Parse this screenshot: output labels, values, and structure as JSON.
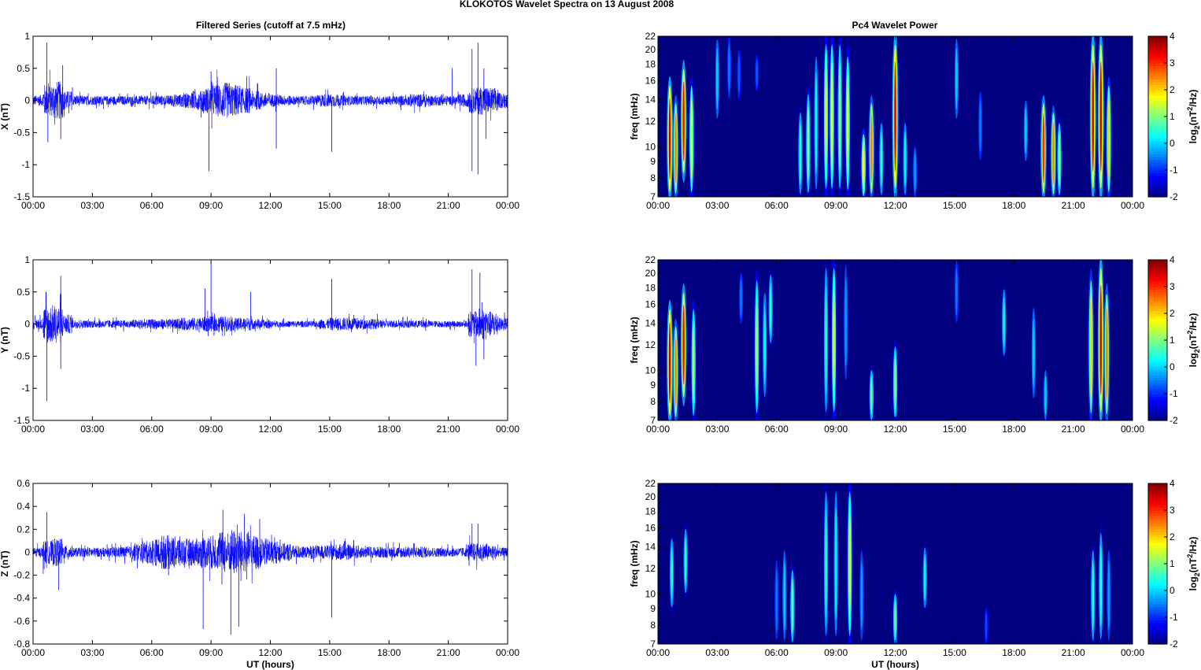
{
  "chart_data": {
    "title": "KLOKOTOS Wavelet Spectra on 13 August    2008",
    "left_title": "Filtered Series (cutoff at 7.5 mHz)",
    "right_title": "Pc4 Wavelet Power",
    "xlabel": "UT (hours)",
    "x_ticks": [
      "00:00",
      "03:00",
      "06:00",
      "09:00",
      "12:00",
      "15:00",
      "18:00",
      "21:00",
      "00:00"
    ],
    "x_range_hours": [
      0,
      24
    ],
    "series": [
      {
        "type": "line",
        "name": "X",
        "ylabel": "X (nT)",
        "color": "#0000ff",
        "ylim": [
          -1.5,
          1
        ],
        "y_ticks": [
          -1.5,
          -1,
          -0.5,
          0,
          0.5,
          1
        ],
        "envelope_halfhourly": [
          0.08,
          0.25,
          0.3,
          0.15,
          0.08,
          0.07,
          0.07,
          0.07,
          0.07,
          0.07,
          0.07,
          0.07,
          0.08,
          0.08,
          0.1,
          0.12,
          0.15,
          0.2,
          0.25,
          0.28,
          0.25,
          0.2,
          0.15,
          0.12,
          0.1,
          0.08,
          0.07,
          0.07,
          0.08,
          0.1,
          0.1,
          0.08,
          0.07,
          0.07,
          0.07,
          0.07,
          0.07,
          0.08,
          0.1,
          0.1,
          0.08,
          0.08,
          0.07,
          0.1,
          0.2,
          0.22,
          0.2,
          0.12
        ],
        "spikes": [
          [
            0.7,
            0.9
          ],
          [
            0.75,
            -0.65
          ],
          [
            1.4,
            -0.6
          ],
          [
            1.5,
            0.55
          ],
          [
            8.9,
            -1.1
          ],
          [
            9.0,
            0.45
          ],
          [
            12.3,
            0.5
          ],
          [
            12.3,
            -0.75
          ],
          [
            15.1,
            -0.8
          ],
          [
            21.2,
            0.5
          ],
          [
            22.2,
            0.8
          ],
          [
            22.2,
            -1.1
          ],
          [
            22.5,
            0.9
          ],
          [
            22.5,
            -1.15
          ],
          [
            22.8,
            0.5
          ],
          [
            22.9,
            -0.6
          ]
        ]
      },
      {
        "type": "line",
        "name": "Y",
        "ylabel": "Y (nT)",
        "color": "#0000ff",
        "ylim": [
          -1.5,
          1
        ],
        "y_ticks": [
          -1.5,
          -1,
          -0.5,
          0,
          0.5,
          1
        ],
        "envelope_halfhourly": [
          0.08,
          0.3,
          0.3,
          0.15,
          0.07,
          0.06,
          0.06,
          0.06,
          0.06,
          0.06,
          0.07,
          0.07,
          0.08,
          0.08,
          0.08,
          0.1,
          0.1,
          0.12,
          0.12,
          0.12,
          0.1,
          0.1,
          0.08,
          0.07,
          0.05,
          0.05,
          0.05,
          0.05,
          0.05,
          0.08,
          0.1,
          0.1,
          0.1,
          0.08,
          0.08,
          0.06,
          0.06,
          0.06,
          0.06,
          0.06,
          0.05,
          0.05,
          0.05,
          0.05,
          0.2,
          0.25,
          0.2,
          0.1
        ],
        "spikes": [
          [
            0.7,
            -1.2
          ],
          [
            0.65,
            0.5
          ],
          [
            1.4,
            0.75
          ],
          [
            1.4,
            -0.7
          ],
          [
            8.7,
            0.55
          ],
          [
            9.0,
            0.97
          ],
          [
            11.0,
            0.5
          ],
          [
            15.1,
            0.7
          ],
          [
            22.2,
            0.85
          ],
          [
            22.4,
            -0.65
          ],
          [
            22.6,
            0.8
          ],
          [
            22.8,
            -0.55
          ]
        ]
      },
      {
        "type": "line",
        "name": "Z",
        "ylabel": "Z (nT)",
        "color": "#0000ff",
        "ylim": [
          -0.8,
          0.6
        ],
        "y_ticks": [
          -0.8,
          -0.6,
          -0.4,
          -0.2,
          0,
          0.2,
          0.4,
          0.6
        ],
        "envelope_halfhourly": [
          0.04,
          0.1,
          0.12,
          0.06,
          0.04,
          0.04,
          0.04,
          0.04,
          0.05,
          0.05,
          0.08,
          0.1,
          0.12,
          0.15,
          0.14,
          0.12,
          0.12,
          0.14,
          0.15,
          0.18,
          0.2,
          0.18,
          0.15,
          0.12,
          0.1,
          0.08,
          0.06,
          0.05,
          0.06,
          0.06,
          0.07,
          0.07,
          0.06,
          0.05,
          0.05,
          0.05,
          0.05,
          0.05,
          0.05,
          0.05,
          0.04,
          0.04,
          0.04,
          0.04,
          0.08,
          0.08,
          0.06,
          0.04
        ],
        "spikes": [
          [
            0.7,
            0.35
          ],
          [
            1.3,
            -0.33
          ],
          [
            8.6,
            -0.67
          ],
          [
            9.6,
            0.37
          ],
          [
            10.0,
            -0.72
          ],
          [
            10.4,
            -0.65
          ],
          [
            15.1,
            -0.57
          ],
          [
            22.2,
            0.25
          ],
          [
            22.5,
            0.25
          ]
        ]
      }
    ],
    "spectra": [
      {
        "type": "heatmap",
        "ylabel": "freq (mHz)",
        "yscale": "log",
        "ylim": [
          7,
          22
        ],
        "y_ticks": [
          7,
          8,
          9,
          10,
          12,
          14,
          16,
          18,
          20,
          22
        ],
        "events_t_fmin_fmax_peak": [
          [
            0.6,
            7,
            16,
            3.5
          ],
          [
            0.9,
            7,
            14,
            2.5
          ],
          [
            1.3,
            8,
            18,
            3.2
          ],
          [
            1.7,
            7,
            16,
            1.5
          ],
          [
            3.0,
            12,
            22,
            0
          ],
          [
            3.6,
            14,
            22,
            -0.5
          ],
          [
            4.1,
            14,
            20,
            -0.7
          ],
          [
            5.0,
            15,
            19,
            -0.7
          ],
          [
            7.2,
            7,
            13,
            0.5
          ],
          [
            7.6,
            7,
            15,
            1
          ],
          [
            8.0,
            7,
            20,
            0.3
          ],
          [
            8.5,
            7,
            22,
            1.5
          ],
          [
            8.8,
            7,
            22,
            1.5
          ],
          [
            9.2,
            7,
            22,
            1
          ],
          [
            9.6,
            7,
            20,
            1.5
          ],
          [
            10.4,
            7,
            11,
            1.8
          ],
          [
            10.8,
            7,
            14,
            2.5
          ],
          [
            11.3,
            7,
            12,
            0.5
          ],
          [
            12.0,
            7,
            22,
            3.5
          ],
          [
            12.5,
            7,
            12,
            0.3
          ],
          [
            13.0,
            7,
            10,
            -0.3
          ],
          [
            15.1,
            12,
            22,
            0
          ],
          [
            16.3,
            9,
            15,
            -0.5
          ],
          [
            18.6,
            9,
            14,
            0
          ],
          [
            19.5,
            7,
            14,
            3
          ],
          [
            20.0,
            7,
            13,
            2.5
          ],
          [
            20.3,
            7,
            12,
            1
          ],
          [
            22.0,
            7,
            22,
            3.5
          ],
          [
            22.4,
            7,
            22,
            3.5
          ],
          [
            22.8,
            7,
            16,
            2
          ]
        ]
      },
      {
        "type": "heatmap",
        "ylabel": "freq (mHz)",
        "yscale": "log",
        "ylim": [
          7,
          22
        ],
        "y_ticks": [
          7,
          8,
          9,
          10,
          12,
          14,
          16,
          18,
          20,
          22
        ],
        "events_t_fmin_fmax_peak": [
          [
            0.6,
            7,
            16,
            3.5
          ],
          [
            0.9,
            7,
            14,
            2.5
          ],
          [
            1.3,
            8,
            18,
            3.2
          ],
          [
            1.8,
            7,
            16,
            1.2
          ],
          [
            4.2,
            14,
            20,
            -0.5
          ],
          [
            5.0,
            7,
            20,
            1.2
          ],
          [
            5.4,
            8,
            18,
            0.3
          ],
          [
            5.7,
            12,
            20,
            0.5
          ],
          [
            8.5,
            7,
            22,
            0.5
          ],
          [
            8.9,
            7,
            22,
            1.5
          ],
          [
            9.5,
            9,
            22,
            -0.3
          ],
          [
            10.8,
            7,
            10,
            0.8
          ],
          [
            12.0,
            7,
            12,
            1
          ],
          [
            15.1,
            14,
            22,
            -0.5
          ],
          [
            17.5,
            11,
            18,
            0.3
          ],
          [
            19.0,
            8,
            16,
            0
          ],
          [
            19.6,
            7,
            10,
            0
          ],
          [
            21.9,
            7,
            20,
            2
          ],
          [
            22.4,
            7,
            22,
            3.5
          ],
          [
            22.7,
            7,
            18,
            2.5
          ]
        ]
      },
      {
        "type": "heatmap",
        "ylabel": "freq (mHz)",
        "yscale": "log",
        "ylim": [
          7,
          22
        ],
        "y_ticks": [
          7,
          8,
          9,
          10,
          12,
          14,
          16,
          18,
          20,
          22
        ],
        "events_t_fmin_fmax_peak": [
          [
            0.7,
            9,
            15,
            0.5
          ],
          [
            1.4,
            10,
            16,
            0.5
          ],
          [
            6.0,
            7,
            13,
            -0.5
          ],
          [
            6.4,
            7,
            14,
            0
          ],
          [
            6.8,
            7,
            12,
            0.8
          ],
          [
            8.5,
            7,
            22,
            0.5
          ],
          [
            9.0,
            7,
            22,
            0.3
          ],
          [
            9.7,
            7,
            22,
            1.5
          ],
          [
            10.3,
            7,
            14,
            -0.3
          ],
          [
            12.0,
            7,
            10,
            0.8
          ],
          [
            13.5,
            9,
            14,
            0.3
          ],
          [
            16.6,
            7,
            9,
            -0.8
          ],
          [
            22.0,
            7,
            14,
            0.5
          ],
          [
            22.4,
            7,
            16,
            0.5
          ],
          [
            22.8,
            7,
            14,
            -0.3
          ]
        ]
      }
    ],
    "colorbar": {
      "label_base": "log",
      "label_sub": "2",
      "label_mid": "(nT",
      "label_sup": "2",
      "label_end": "/Hz)",
      "range": [
        -2,
        4
      ],
      "ticks": [
        4,
        3,
        2,
        1,
        0,
        -1,
        -2
      ]
    }
  }
}
